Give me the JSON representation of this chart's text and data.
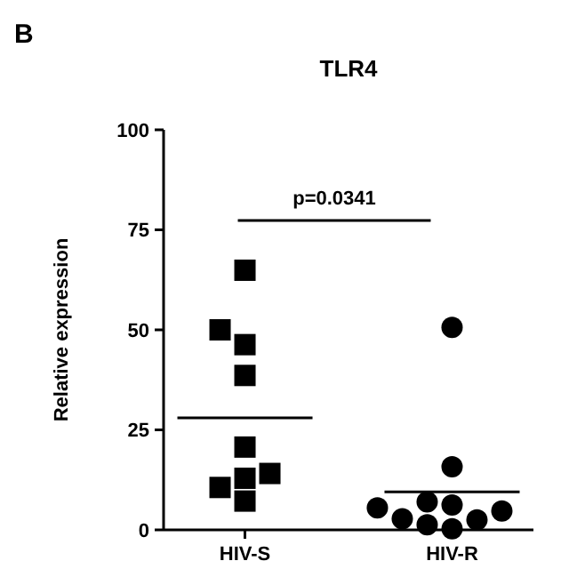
{
  "chart_data": {
    "type": "scatter",
    "title": "TLR4",
    "ylabel": "Relative expression",
    "categories": [
      "HIV-S",
      "HIV-R"
    ],
    "ylim": [
      0,
      100
    ],
    "yticks": [
      0,
      25,
      50,
      75,
      100
    ],
    "grid": false,
    "ref_lines": [
      {
        "axis": "y",
        "value": 28,
        "color": "#000000"
      },
      {
        "axis": "y",
        "value": 9.5,
        "color": "#000000"
      }
    ],
    "annotations": [
      "B",
      "p=0.0341"
    ],
    "series": [
      {
        "x": [
          "HIV-S",
          "HIV-S",
          "HIV-S",
          "HIV-S",
          "HIV-S",
          "HIV-S",
          "HIV-S",
          "HIV-S",
          "HIV-S"
        ],
        "values": [
          64.9,
          50,
          46.3,
          38.6,
          20.7,
          12.9,
          14.1,
          10.6,
          7.2
        ],
        "color": "#000000",
        "marker": "square"
      },
      {
        "x": [
          "HIV-R",
          "HIV-R",
          "HIV-R",
          "HIV-R",
          "HIV-R",
          "HIV-R",
          "HIV-R",
          "HIV-R",
          "HIV-R",
          "HIV-R"
        ],
        "values": [
          50.6,
          15.8,
          4.7,
          6.2,
          2.5,
          5.5,
          7.0,
          2.8,
          0.3,
          1.3
        ],
        "color": "#000000",
        "marker": "circle"
      }
    ]
  }
}
